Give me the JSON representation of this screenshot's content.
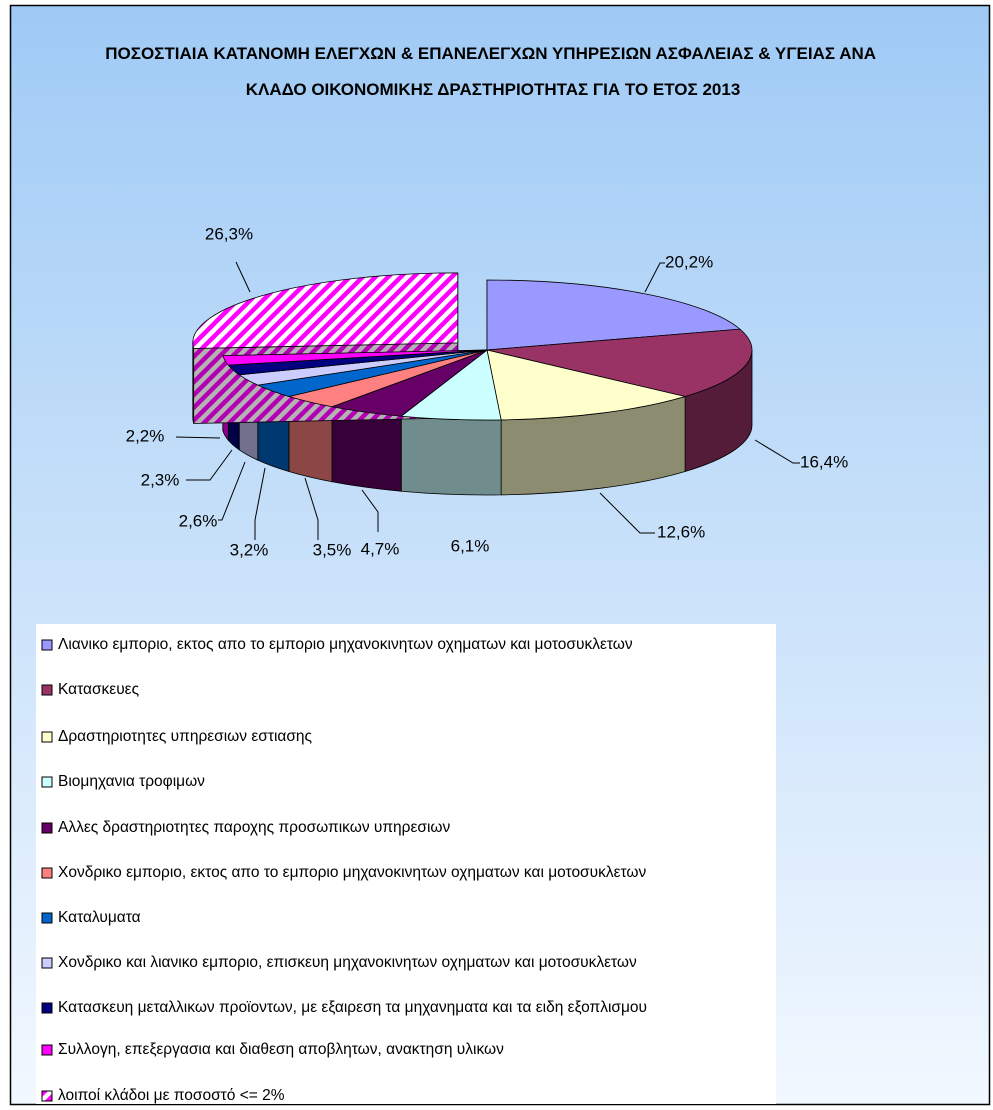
{
  "chart_data": {
    "type": "pie",
    "style": "3d",
    "title": "ΠΟΣΟΣΤΙΑΙΑ ΚΑΤΑΝΟΜΗ ΕΛΕΓΧΩΝ & ΕΠΑΝΕΛΕΓΧΩΝ ΥΠΗΡΕΣΙΩΝ ΑΣΦΑΛΕΙΑΣ & ΥΓΕΙΑΣ ΑΝΑ ΚΛΑΔΟ ΟΙΚΟΝΟΜΙΚΗΣ ΔΡΑΣΤΗΡΙΟΤΗΤΑΣ ΓΙΑ ΤΟ ΕΤΟΣ 2013",
    "categories": [
      "Λιανικο εμποριο, εκτος απο το εμποριο μηχανοκινητων οχηματων και  μοτοσυκλετων",
      "Κατασκευες",
      "Δραστηριοτητες υπηρεσιων εστιασης",
      "Βιομηχανια τροφιμων",
      "Αλλες δραστηριοτητες παροχης προσωπικων υπηρεσιων",
      "Χονδρικο εμποριο, εκτος απο το εμποριο μηχανοκινητων οχηματων και μοτοσυκλετων",
      "Καταλυματα",
      "Χονδρικο και λιανικο εμποριο, επισκευη μηχανοκινητων οχηματων και μοτοσυκλετων",
      "Κατασκευη μεταλλικων προϊοντων, με εξαιρεση τα μηχανηματα και τα ειδη εξοπλισμου",
      "Συλλογη, επεξεργασια και διαθεση αποβλητων, ανακτηση υλικων",
      "λοιποί κλάδοι με ποσοστό <= 2%"
    ],
    "values": [
      20.2,
      16.4,
      12.6,
      6.1,
      4.7,
      3.5,
      3.2,
      2.6,
      2.3,
      2.2,
      26.3
    ],
    "value_labels": [
      "20,2%",
      "16,4%",
      "12,6%",
      "6,1%",
      "4,7%",
      "3,5%",
      "3,2%",
      "2,6%",
      "2,3%",
      "2,2%",
      "26,3%"
    ],
    "colors": [
      "#9999ff",
      "#993366",
      "#ffffcc",
      "#ccffff",
      "#660066",
      "#ff8080",
      "#0066cc",
      "#ccccff",
      "#000080",
      "#ff00ff",
      "#ff00ff"
    ],
    "patterns": [
      "solid",
      "solid",
      "solid",
      "solid",
      "solid",
      "solid",
      "solid",
      "solid",
      "solid",
      "solid",
      "hatch"
    ],
    "legend": "bottom"
  }
}
